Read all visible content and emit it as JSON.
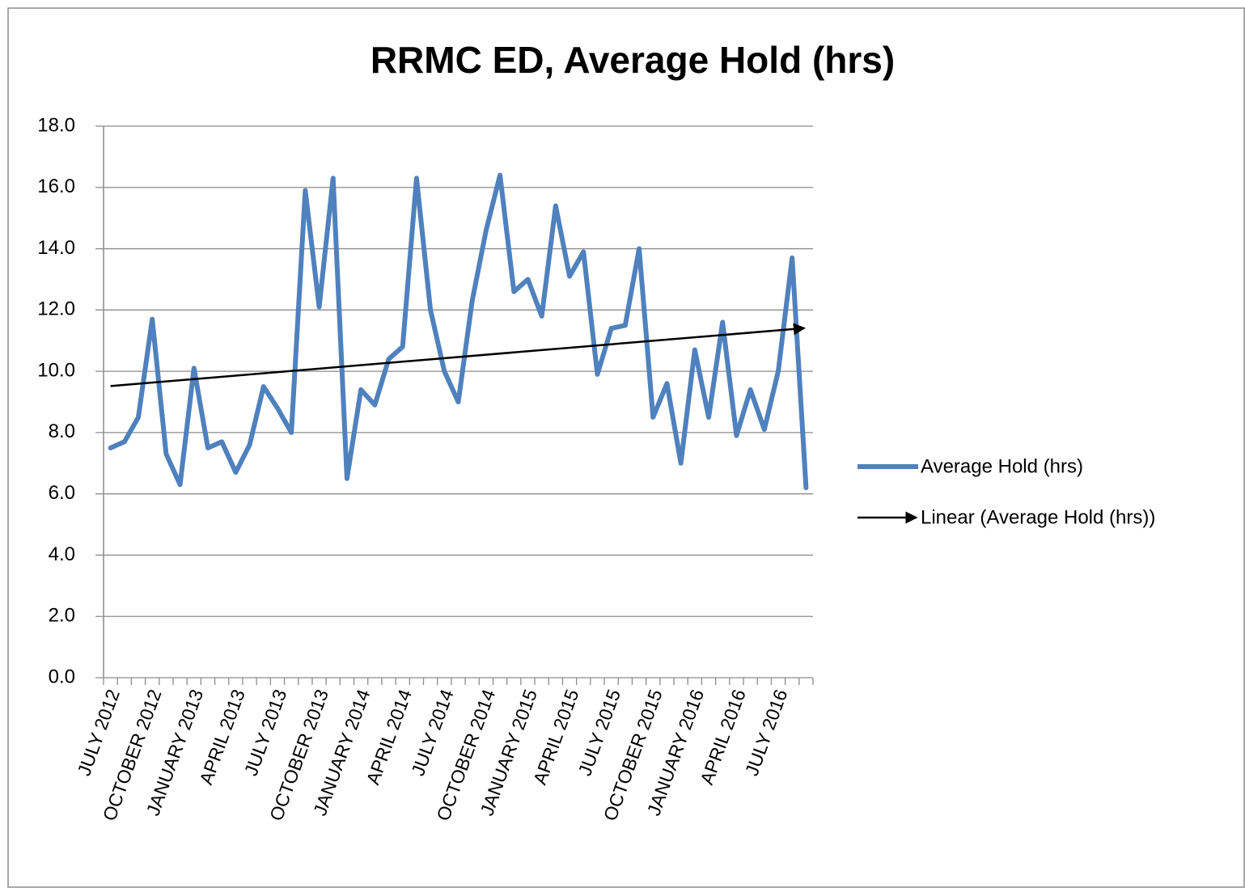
{
  "chart_data": {
    "type": "line",
    "title": "RRMC ED, Average Hold (hrs)",
    "categories": [
      "JULY 2012",
      null,
      null,
      "OCTOBER 2012",
      null,
      null,
      "JANUARY 2013",
      null,
      null,
      "APRIL 2013",
      null,
      null,
      "JULY 2013",
      null,
      null,
      "OCTOBER 2013",
      null,
      null,
      "JANUARY 2014",
      null,
      null,
      "APRIL 2014",
      null,
      null,
      "JULY 2014",
      null,
      null,
      "OCTOBER 2014",
      null,
      null,
      "JANUARY 2015",
      null,
      null,
      "APRIL 2015",
      null,
      null,
      "JULY 2015",
      null,
      null,
      "OCTOBER 2015",
      null,
      null,
      "JANUARY 2016",
      null,
      null,
      "APRIL 2016",
      null,
      null,
      "JULY 2016",
      null,
      null
    ],
    "series": [
      {
        "name": "Average Hold (hrs)",
        "color": "#4f81bd",
        "values": [
          7.5,
          7.7,
          8.5,
          11.7,
          7.3,
          6.3,
          10.1,
          7.5,
          7.7,
          6.7,
          7.6,
          9.5,
          8.8,
          8.0,
          15.9,
          12.1,
          16.3,
          6.5,
          9.4,
          8.9,
          10.4,
          10.8,
          16.3,
          12.0,
          10.0,
          9.0,
          12.3,
          14.6,
          16.4,
          12.6,
          13.0,
          11.8,
          15.4,
          13.1,
          13.9,
          9.9,
          11.4,
          11.5,
          14.0,
          8.5,
          9.6,
          7.0,
          10.7,
          8.5,
          11.6,
          7.9,
          9.4,
          8.1,
          10.0,
          13.7,
          6.2
        ]
      }
    ],
    "trendline": {
      "name": "Linear (Average Hold (hrs))",
      "color": "#000000",
      "kind": "linear"
    },
    "ylim": [
      0,
      18
    ],
    "yticks": [
      {
        "value": 0,
        "label": "0.0"
      },
      {
        "value": 2,
        "label": "2.0"
      },
      {
        "value": 4,
        "label": "4.0"
      },
      {
        "value": 6,
        "label": "6.0"
      },
      {
        "value": 8,
        "label": "8.0"
      },
      {
        "value": 10,
        "label": "10.0"
      },
      {
        "value": 12,
        "label": "12.0"
      },
      {
        "value": 14,
        "label": "14.0"
      },
      {
        "value": 16,
        "label": "16.0"
      },
      {
        "value": 18,
        "label": "18.0"
      }
    ],
    "grid": true,
    "legend": "right"
  }
}
